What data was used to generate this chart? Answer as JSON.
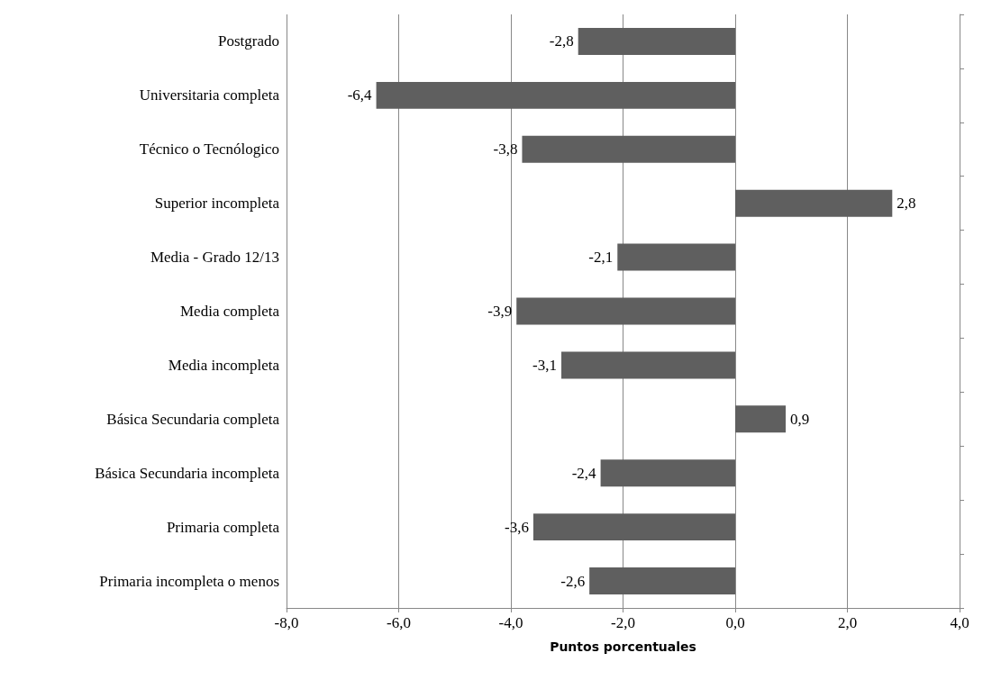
{
  "chart_data": {
    "type": "bar",
    "orientation": "horizontal",
    "xlabel": "Puntos porcentuales",
    "categories": [
      "Postgrado",
      "Universitaria completa",
      "Técnico o Tecnólogico",
      "Superior incompleta",
      "Media - Grado 12/13",
      "Media completa",
      "Media incompleta",
      "Básica Secundaria completa",
      "Básica Secundaria incompleta",
      "Primaria completa",
      "Primaria incompleta o menos"
    ],
    "values": [
      -2.8,
      -6.4,
      -3.8,
      2.8,
      -2.1,
      -3.9,
      -3.1,
      0.9,
      -2.4,
      -3.6,
      -2.6
    ],
    "value_labels": [
      "-2,8",
      "-6,4",
      "-3,8",
      "2,8",
      "-2,1",
      "-3,9",
      "-3,1",
      "0,9",
      "-2,4",
      "-3,6",
      "-2,6"
    ],
    "color": "#5f5f5f",
    "xlim": [
      -8,
      4
    ],
    "xticks": [
      {
        "value": -8,
        "label": "-8,0"
      },
      {
        "value": -6,
        "label": "-6,0"
      },
      {
        "value": -4,
        "label": "-4,0"
      },
      {
        "value": -2,
        "label": "-2,0"
      },
      {
        "value": 0,
        "label": "0,0"
      },
      {
        "value": 2,
        "label": "2,0"
      },
      {
        "value": 4,
        "label": "4,0"
      }
    ],
    "grid": "x"
  }
}
